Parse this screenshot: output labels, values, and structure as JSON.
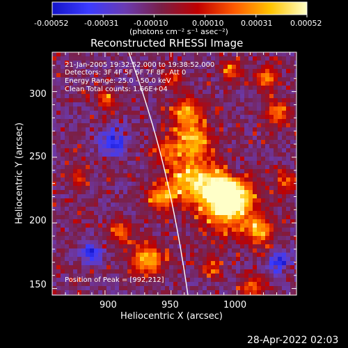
{
  "colorbar": {
    "tick_labels": [
      "-0.00052",
      "-0.00031",
      "-0.00010",
      "0.00010",
      "0.00031",
      "0.00052"
    ],
    "unit_label": "(photons cm⁻² s⁻¹ asec⁻²)",
    "colors": [
      "#1414c8",
      "#3b3bff",
      "#6a3bb2",
      "#7a1f46",
      "#c00000",
      "#ff5a00",
      "#ffc400",
      "#ffffc8"
    ]
  },
  "plot": {
    "title": "Reconstructed RHESSI Image",
    "info_lines": [
      "21-Jan-2005 19:32:52.000 to 19:38:52.000",
      "Detectors: 3F 4F 5F 6F 7F 8F, Att 0",
      "Energy Range: 25.0 - 50.0 keV",
      "Clean     Total counts: 1.66E+04"
    ],
    "peak_text": "Position of Peak = [992,212]",
    "x_axis": {
      "label": "Heliocentric X (arcsec)",
      "range": [
        860,
        1045
      ],
      "ticks": [
        "900",
        "950",
        "1000"
      ]
    },
    "y_axis": {
      "label": "Heliocentric Y (arcsec)",
      "range": [
        145,
        330
      ],
      "ticks": [
        "150",
        "200",
        "250",
        "300"
      ]
    }
  },
  "timestamp": "28-Apr-2022 02:03"
}
